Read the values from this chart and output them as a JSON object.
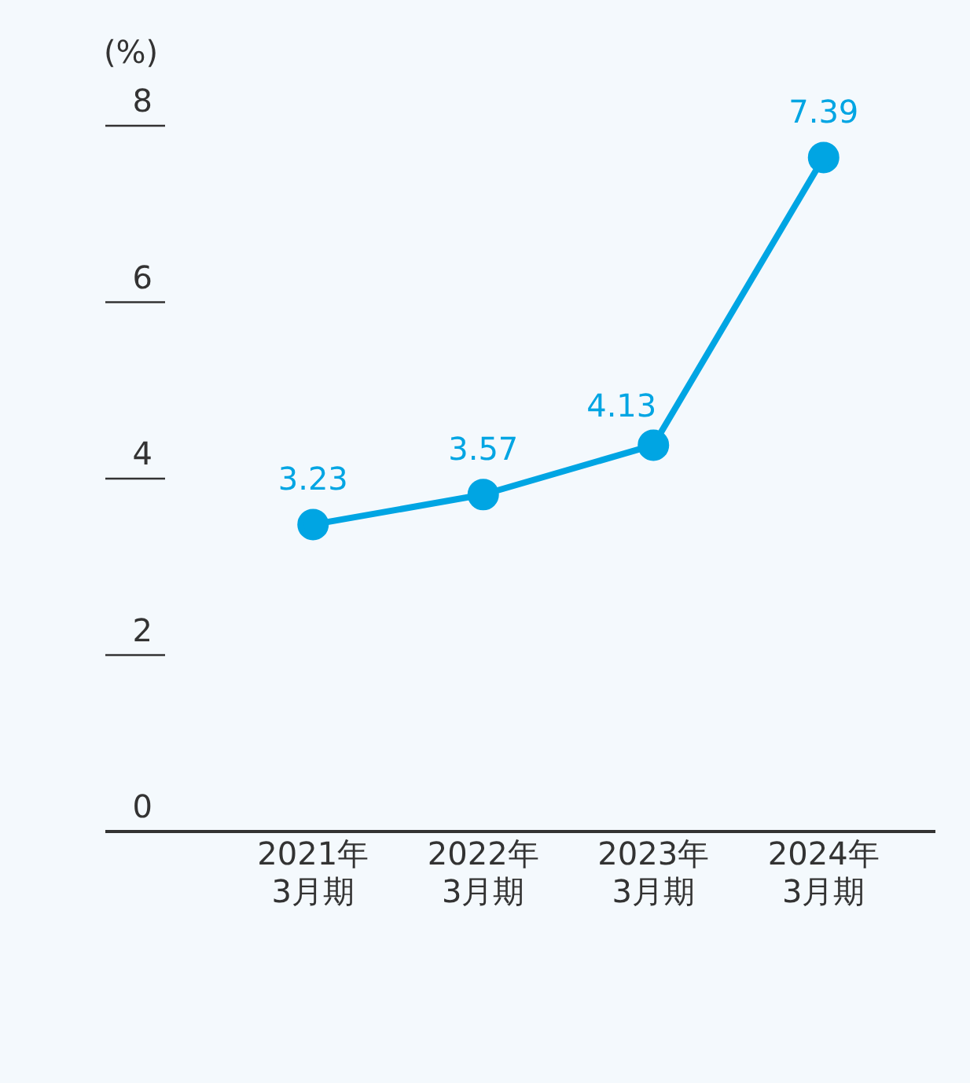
{
  "chart_data": {
    "type": "line",
    "ylabel": "(%)",
    "categories": [
      "2021年\n3月期",
      "2022年\n3月期",
      "2023年\n3月期",
      "2024年\n3月期"
    ],
    "series": [
      {
        "color": "#00a5e3",
        "values": [
          3.23,
          3.57,
          4.13,
          7.39
        ]
      }
    ],
    "ylim": [
      0,
      8
    ],
    "yticks": [
      0,
      2,
      4,
      6,
      8
    ],
    "grid": false,
    "legend": false,
    "marker": "circle",
    "line_style": "solid",
    "data_labels": true
  }
}
